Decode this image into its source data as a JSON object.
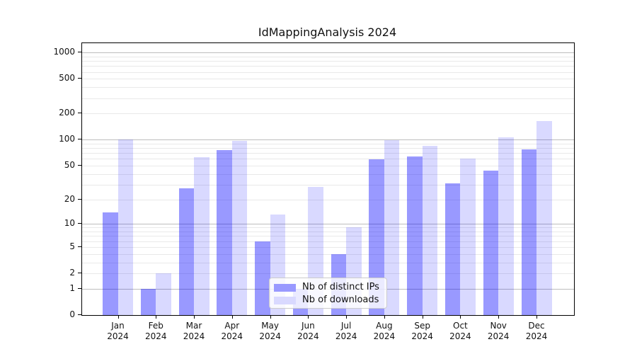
{
  "title": "IdMappingAnalysis 2024",
  "chart_data": {
    "type": "bar",
    "title": "IdMappingAnalysis 2024",
    "categories": [
      "Jan",
      "Feb",
      "Mar",
      "Apr",
      "May",
      "Jun",
      "Jul",
      "Aug",
      "Sep",
      "Oct",
      "Nov",
      "Dec"
    ],
    "category_year": "2024",
    "x_tick_labels": [
      "Jan 2024",
      "Feb 2024",
      "Mar 2024",
      "Apr 2024",
      "May 2024",
      "Jun 2024",
      "Jul 2024",
      "Aug 2024",
      "Sep 2024",
      "Oct 2024",
      "Nov 2024",
      "Dec 2024"
    ],
    "series": [
      {
        "name": "Nb of distinct IPs",
        "color": "#9999ff",
        "fill": "rgba(0,0,255,0.40)",
        "values": [
          14,
          1,
          27,
          76,
          6,
          1,
          4,
          59,
          64,
          31,
          44,
          78
        ]
      },
      {
        "name": "Nb of downloads",
        "color": "#d9d9ff",
        "fill": "rgba(0,0,255,0.15)",
        "values": [
          100,
          2,
          63,
          97,
          13,
          28,
          9,
          99,
          85,
          60,
          106,
          164
        ]
      }
    ],
    "yscale": "log1p",
    "y_ticks": [
      0,
      1,
      2,
      5,
      10,
      20,
      50,
      100,
      200,
      500,
      1000
    ],
    "ylim": [
      0,
      1281
    ],
    "grid": "both",
    "grid_major_values": [
      1,
      10,
      100,
      1000
    ],
    "grid_color_major": "#bdbdbd",
    "grid_color_minor": "#e9e9e9",
    "legend": {
      "position": "lower-center",
      "entries": [
        "Nb of distinct IPs",
        "Nb of downloads"
      ]
    }
  }
}
